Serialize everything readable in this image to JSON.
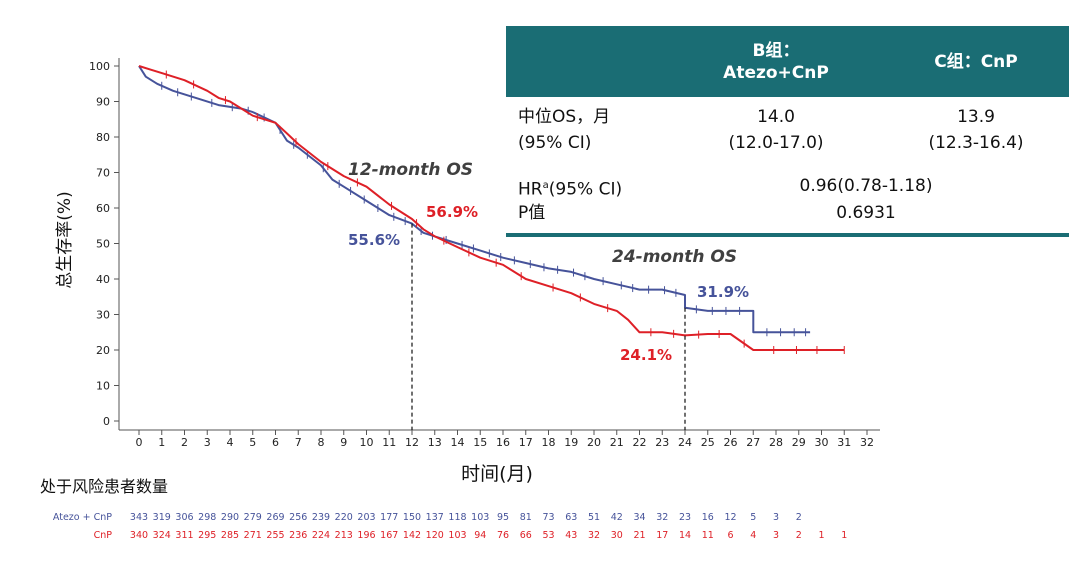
{
  "chart_data": {
    "type": "line",
    "ylabel": "总生存率(%)",
    "xlabel": "时间(月)",
    "xlim": [
      0,
      32
    ],
    "ylim": [
      0,
      100
    ],
    "x_ticks": [
      "0",
      "1",
      "2",
      "3",
      "4",
      "5",
      "6",
      "7",
      "8",
      "9",
      "10",
      "11",
      "12",
      "13",
      "14",
      "15",
      "16",
      "17",
      "18",
      "19",
      "20",
      "21",
      "22",
      "23",
      "24",
      "25",
      "26",
      "27",
      "28",
      "29",
      "30",
      "31",
      "32"
    ],
    "y_ticks": [
      "0",
      "10",
      "20",
      "30",
      "40",
      "50",
      "60",
      "70",
      "80",
      "90",
      "100"
    ],
    "series": [
      {
        "name": "Atezo + CnP",
        "color": "#46539a",
        "points": [
          [
            0,
            100
          ],
          [
            0.3,
            97
          ],
          [
            0.8,
            95
          ],
          [
            1.5,
            93
          ],
          [
            2.5,
            91
          ],
          [
            3.5,
            89
          ],
          [
            4.5,
            88
          ],
          [
            5,
            87
          ],
          [
            6,
            84
          ],
          [
            6.5,
            79
          ],
          [
            7,
            77
          ],
          [
            8,
            72
          ],
          [
            8.5,
            68
          ],
          [
            9,
            66
          ],
          [
            10,
            62
          ],
          [
            11,
            58
          ],
          [
            12,
            55.6
          ],
          [
            12.5,
            53
          ],
          [
            13,
            52
          ],
          [
            14,
            50
          ],
          [
            15,
            48
          ],
          [
            16,
            46
          ],
          [
            17,
            44.5
          ],
          [
            18,
            43
          ],
          [
            19,
            42
          ],
          [
            20,
            40
          ],
          [
            21,
            38.5
          ],
          [
            22,
            37
          ],
          [
            23,
            37
          ],
          [
            24,
            35.5
          ],
          [
            24,
            31.9
          ],
          [
            25,
            31
          ],
          [
            27,
            31
          ],
          [
            27,
            25
          ],
          [
            29.5,
            25
          ]
        ],
        "censor_x": [
          1,
          1.7,
          2.3,
          3.2,
          4.1,
          4.8,
          5.5,
          6.2,
          6.8,
          7.4,
          8.1,
          8.8,
          9.3,
          9.9,
          10.5,
          11.2,
          11.7,
          12.4,
          12.9,
          13.5,
          14.2,
          14.7,
          15.4,
          15.9,
          16.5,
          17.2,
          17.8,
          18.4,
          19.1,
          19.6,
          20.4,
          21.2,
          21.7,
          22.4,
          23.1,
          23.6,
          24.5,
          25.2,
          25.8,
          26.4,
          27.6,
          28.2,
          28.8,
          29.3
        ]
      },
      {
        "name": "CnP",
        "color": "#de2027",
        "points": [
          [
            0,
            100
          ],
          [
            0.5,
            99
          ],
          [
            1,
            98
          ],
          [
            2,
            96
          ],
          [
            3,
            93
          ],
          [
            3.5,
            91
          ],
          [
            4,
            90
          ],
          [
            5,
            86
          ],
          [
            6,
            84
          ],
          [
            6.5,
            81
          ],
          [
            7,
            78
          ],
          [
            8,
            73
          ],
          [
            8.5,
            71
          ],
          [
            9,
            69
          ],
          [
            10,
            66
          ],
          [
            11,
            61
          ],
          [
            12,
            56.9
          ],
          [
            12.5,
            54
          ],
          [
            13,
            52
          ],
          [
            14,
            49
          ],
          [
            15,
            46
          ],
          [
            16,
            44
          ],
          [
            17,
            40
          ],
          [
            18,
            38
          ],
          [
            19,
            36
          ],
          [
            20,
            33
          ],
          [
            21,
            31
          ],
          [
            21.5,
            28.5
          ],
          [
            22,
            25
          ],
          [
            23,
            25
          ],
          [
            24,
            24.1
          ],
          [
            25,
            24.5
          ],
          [
            26,
            24.5
          ],
          [
            27,
            20
          ],
          [
            31,
            20
          ]
        ],
        "censor_x": [
          1.2,
          2.4,
          3.8,
          5.2,
          6.9,
          8.3,
          9.6,
          11.1,
          12.2,
          13.4,
          14.5,
          15.7,
          16.8,
          18.2,
          19.4,
          20.6,
          22.5,
          23.5,
          24.6,
          25.5,
          26.6,
          27.9,
          28.9,
          29.8,
          31
        ]
      }
    ],
    "annotations": {
      "os12_title": "12-month OS",
      "os12_atezo": "55.6%",
      "os12_cnp": "56.9%",
      "os24_title": "24-month OS",
      "os24_atezo": "31.9%",
      "os24_cnp": "24.1%"
    },
    "risk_table": {
      "title": "处于风险患者数量",
      "rows": [
        {
          "label": "Atezo + CnP",
          "color": "#46539a",
          "values": [
            "343",
            "319",
            "306",
            "298",
            "290",
            "279",
            "269",
            "256",
            "239",
            "220",
            "203",
            "177",
            "150",
            "137",
            "118",
            "103",
            "95",
            "81",
            "73",
            "63",
            "51",
            "42",
            "34",
            "32",
            "23",
            "16",
            "12",
            "5",
            "3",
            "2"
          ]
        },
        {
          "label": "CnP",
          "color": "#de2027",
          "values": [
            "340",
            "324",
            "311",
            "295",
            "285",
            "271",
            "255",
            "236",
            "224",
            "213",
            "196",
            "167",
            "142",
            "120",
            "103",
            "94",
            "76",
            "66",
            "53",
            "43",
            "32",
            "30",
            "21",
            "17",
            "14",
            "11",
            "6",
            "4",
            "3",
            "2",
            "1",
            "1"
          ]
        }
      ]
    }
  },
  "summary_table": {
    "header_col2": [
      "B组：",
      "Atezo+CnP"
    ],
    "header_col3": "C组：CnP",
    "median_label": [
      "中位OS，月",
      "(95% CI)"
    ],
    "median_b": [
      "14.0",
      "(12.0-17.0)"
    ],
    "median_c": [
      "13.9",
      "(12.3-16.4)"
    ],
    "hr_label_main": "HR",
    "hr_label_sup": "a",
    "hr_label_rest": "(95% CI)",
    "hr_value": "0.96(0.78-1.18)",
    "p_label": "P值",
    "p_value": "0.6931",
    "header_color": "#1a6d74"
  }
}
